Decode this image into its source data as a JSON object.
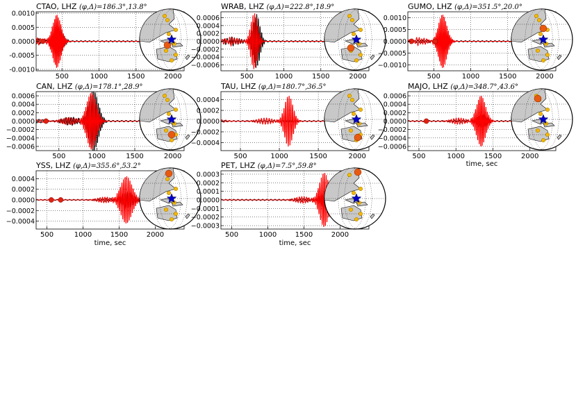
{
  "figure": {
    "xlabel": "time, sec",
    "colors": {
      "observed": "#000000",
      "synthetic": "#ff0000",
      "event": "#e85a10",
      "station": "#f5b800",
      "epicenter": "#0000cc",
      "land": "#c8c8c8"
    }
  },
  "chart_data": [
    {
      "type": "line",
      "station": "CTAO",
      "channel": "LHZ",
      "title_text": "CTAO, LHZ",
      "title_math": "(φ,Δ)=186.3°,13.8°",
      "xlim": [
        150,
        2150
      ],
      "xticks": [
        "500",
        "1000",
        "1500",
        "2000"
      ],
      "xtick_values": [
        500,
        1000,
        1500,
        2000
      ],
      "ylim": [
        -0.00105,
        0.00105
      ],
      "yticks": [
        "0.0010",
        "0.0005",
        "0.0000",
        "-0.0005",
        "-0.0010"
      ],
      "ytick_values": [
        0.001,
        0.0005,
        0,
        -0.0005,
        -0.001
      ],
      "amp": 0.00095,
      "arrival": 430,
      "dur": 160,
      "freq": 0.06,
      "obs_scale": 0.6,
      "obs_shift": 18,
      "window_end": 1800,
      "markers": [
        150,
        240
      ],
      "grid": true
    },
    {
      "type": "line",
      "station": "WRAB",
      "channel": "LHZ",
      "title_text": "WRAB, LHZ",
      "title_math": "(φ,Δ)=222.8°,18.9°",
      "xlim": [
        150,
        2150
      ],
      "xticks": [
        "500",
        "1000",
        "1500",
        "2000"
      ],
      "xtick_values": [
        500,
        1000,
        1500,
        2000
      ],
      "ylim": [
        -0.00075,
        0.00075
      ],
      "yticks": [
        "0.0006",
        "0.0004",
        "0.0002",
        "0.0000",
        "−0.0002",
        "−0.0004",
        "−0.0006"
      ],
      "ytick_values": [
        0.0006,
        0.0004,
        0.0002,
        0,
        -0.0002,
        -0.0004,
        -0.0006
      ],
      "amp": 0.00072,
      "arrival": 600,
      "dur": 130,
      "freq": 0.045,
      "obs_scale": 0.95,
      "obs_shift": 30,
      "window_end": 1900,
      "markers": [],
      "grid": true
    },
    {
      "type": "line",
      "station": "GUMO",
      "channel": "LHZ",
      "title_text": "GUMO, LHZ",
      "title_math": "(φ,Δ)=351.5°,20.0°",
      "xlim": [
        150,
        2150
      ],
      "xticks": [
        "500",
        "1000",
        "1500",
        "2000"
      ],
      "xtick_values": [
        500,
        1000,
        1500,
        2000
      ],
      "ylim": [
        -0.00125,
        0.00125
      ],
      "yticks": [
        "0.0010",
        "0.0005",
        "0.0000",
        "−0.0005",
        "−0.0010"
      ],
      "ytick_values": [
        0.001,
        0.0005,
        0,
        -0.0005,
        -0.001
      ],
      "amp": 0.00115,
      "arrival": 620,
      "dur": 160,
      "freq": 0.055,
      "obs_scale": 0.35,
      "obs_shift": 20,
      "window_end": 1800,
      "markers": [
        200,
        520
      ],
      "grid": true
    },
    {
      "type": "line",
      "station": "CAN",
      "channel": "LHZ",
      "title_text": "CAN, LHZ",
      "title_math": "(φ,Δ)=178.1°,28.9°",
      "xlim": [
        200,
        2150
      ],
      "xticks": [
        "500",
        "1000",
        "1500",
        "2000"
      ],
      "xtick_values": [
        500,
        1000,
        1500,
        2000
      ],
      "ylim": [
        -0.0007,
        0.0007
      ],
      "yticks": [
        "0.0006",
        "0.0004",
        "0.0002",
        "0.0000",
        "−0.0002",
        "−0.0004",
        "−0.0006"
      ],
      "ytick_values": [
        0.0006,
        0.0004,
        0.0002,
        0,
        -0.0002,
        -0.0004,
        -0.0006
      ],
      "amp": 0.0007,
      "arrival": 930,
      "dur": 180,
      "freq": 0.05,
      "obs_scale": 1.05,
      "obs_shift": 25,
      "window_end": 1850,
      "markers": [
        330
      ],
      "grid": true
    },
    {
      "type": "line",
      "station": "TAU",
      "channel": "LHZ",
      "title_text": "TAU, LHZ",
      "title_math": "(φ,Δ)=180.7°,36.5°",
      "xlim": [
        250,
        2150
      ],
      "xticks": [
        "500",
        "1000",
        "1500",
        "2000"
      ],
      "xtick_values": [
        500,
        1000,
        1500,
        2000
      ],
      "ylim": [
        -0.00055,
        0.00055
      ],
      "yticks": [
        "0.0004",
        "0.0002",
        "0.0000",
        "−0.0002",
        "−0.0004"
      ],
      "ytick_values": [
        0.0004,
        0.0002,
        0,
        -0.0002,
        -0.0004
      ],
      "amp": 0.00048,
      "arrival": 1120,
      "dur": 150,
      "freq": 0.045,
      "obs_scale": 0.05,
      "obs_shift": 0,
      "window_end": 1850,
      "markers": [],
      "grid": true
    },
    {
      "type": "line",
      "station": "MAJO",
      "channel": "LHZ",
      "title_text": "MAJO, LHZ",
      "title_math": "(φ,Δ)=348.7°,43.6°",
      "xlim": [
        350,
        2350
      ],
      "xticks": [
        "500",
        "1000",
        "1500",
        "2000"
      ],
      "xtick_values": [
        500,
        1000,
        1500,
        2000
      ],
      "ylim": [
        -0.0007,
        0.0007
      ],
      "yticks": [
        "0.0006",
        "0.0004",
        "0.0002",
        "0.0000",
        "−0.0002",
        "−0.0004",
        "−0.0006"
      ],
      "ytick_values": [
        0.0006,
        0.0004,
        0.0002,
        0,
        -0.0002,
        -0.0004,
        -0.0006
      ],
      "amp": 0.00062,
      "arrival": 1340,
      "dur": 170,
      "freq": 0.05,
      "obs_scale": 0.22,
      "obs_shift": 15,
      "window_end": 2000,
      "markers": [
        600
      ],
      "grid": true
    },
    {
      "type": "line",
      "station": "YSS",
      "channel": "LHZ",
      "title_text": "YSS, LHZ",
      "title_math": "(φ,Δ)=355.6°,53.2°",
      "xlim": [
        350,
        2400
      ],
      "xticks": [
        "500",
        "1000",
        "1500",
        "2000"
      ],
      "xtick_values": [
        500,
        1000,
        1500,
        2000
      ],
      "ylim": [
        -0.00055,
        0.00055
      ],
      "yticks": [
        "0.0004",
        "0.0002",
        "0.0000",
        "−0.0002",
        "−0.0004"
      ],
      "ytick_values": [
        0.0004,
        0.0002,
        0,
        -0.0002,
        -0.0004
      ],
      "amp": 0.00045,
      "arrival": 1600,
      "dur": 220,
      "freq": 0.045,
      "obs_scale": 0.35,
      "obs_shift": 20,
      "window_end": 2000,
      "markers": [
        560,
        690
      ],
      "grid": true
    },
    {
      "type": "line",
      "station": "PET",
      "channel": "LHZ",
      "title_text": "PET, LHZ",
      "title_math": "(φ,Δ)=7.5°,59.8°",
      "xlim": [
        350,
        2400
      ],
      "xticks": [
        "500",
        "1000",
        "1500",
        "2000"
      ],
      "xtick_values": [
        500,
        1000,
        1500,
        2000
      ],
      "ylim": [
        -0.00034,
        0.00034
      ],
      "yticks": [
        "0.0003",
        "0.0002",
        "0.0001",
        "0.0000",
        "−0.0001",
        "−0.0002",
        "−0.0003"
      ],
      "ytick_values": [
        0.0003,
        0.0002,
        0.0001,
        0,
        -0.0001,
        -0.0002,
        -0.0003
      ],
      "amp": 0.00032,
      "arrival": 1780,
      "dur": 180,
      "freq": 0.045,
      "obs_scale": 0.3,
      "obs_shift": 20,
      "window_end": 2000,
      "markers": [],
      "grid": true
    }
  ]
}
